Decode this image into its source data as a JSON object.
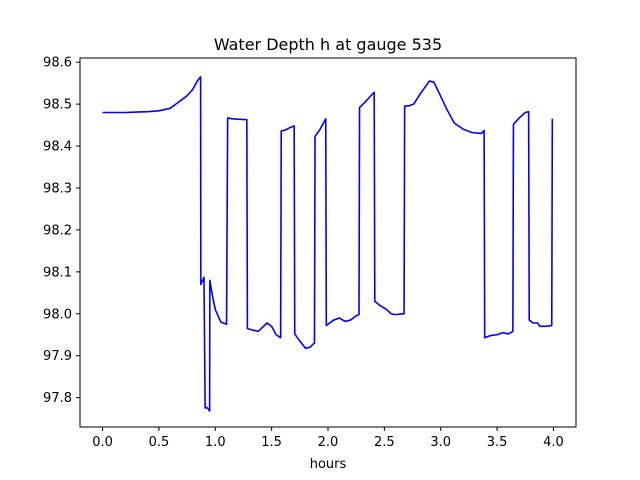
{
  "chart_data": {
    "type": "line",
    "title": "Water Depth h at gauge 535",
    "xlabel": "hours",
    "ylabel": "",
    "xlim": [
      -0.2,
      4.2
    ],
    "ylim": [
      97.73,
      98.61
    ],
    "xticks": [
      0.0,
      0.5,
      1.0,
      1.5,
      2.0,
      2.5,
      3.0,
      3.5,
      4.0
    ],
    "xtick_labels": [
      "0.0",
      "0.5",
      "1.0",
      "1.5",
      "2.0",
      "2.5",
      "3.0",
      "3.5",
      "4.0"
    ],
    "yticks": [
      97.8,
      97.9,
      98.0,
      98.1,
      98.2,
      98.3,
      98.4,
      98.5,
      98.6
    ],
    "ytick_labels": [
      "97.8",
      "97.9",
      "98.0",
      "98.1",
      "98.2",
      "98.3",
      "98.4",
      "98.5",
      "98.6"
    ],
    "grid": false,
    "series": [
      {
        "color": "#0000ff",
        "x": [
          0.0,
          0.1,
          0.2,
          0.3,
          0.4,
          0.5,
          0.6,
          0.65,
          0.7,
          0.75,
          0.8,
          0.84,
          0.87,
          0.872,
          0.9,
          0.91,
          0.92,
          0.93,
          0.94,
          0.95,
          0.952,
          0.97,
          1.0,
          1.05,
          1.1,
          1.11,
          1.15,
          1.2,
          1.28,
          1.285,
          1.32,
          1.38,
          1.42,
          1.46,
          1.5,
          1.54,
          1.58,
          1.585,
          1.62,
          1.67,
          1.7,
          1.705,
          1.75,
          1.8,
          1.84,
          1.87,
          1.88,
          1.885,
          1.93,
          1.98,
          1.985,
          2.05,
          2.1,
          2.15,
          2.2,
          2.25,
          2.275,
          2.28,
          2.33,
          2.38,
          2.41,
          2.415,
          2.46,
          2.52,
          2.56,
          2.6,
          2.66,
          2.675,
          2.68,
          2.72,
          2.76,
          2.82,
          2.9,
          2.94,
          2.98,
          3.05,
          3.12,
          3.2,
          3.28,
          3.36,
          3.385,
          3.39,
          3.44,
          3.5,
          3.55,
          3.6,
          3.64,
          3.645,
          3.7,
          3.75,
          3.78,
          3.785,
          3.82,
          3.86,
          3.88,
          3.92,
          3.985,
          3.99
        ],
        "y": [
          98.48,
          98.48,
          98.48,
          98.481,
          98.482,
          98.484,
          98.49,
          98.5,
          98.51,
          98.52,
          98.535,
          98.555,
          98.565,
          98.07,
          98.087,
          97.775,
          97.777,
          97.775,
          97.772,
          97.768,
          98.08,
          98.05,
          98.01,
          97.98,
          97.975,
          98.467,
          98.465,
          98.464,
          98.463,
          97.965,
          97.962,
          97.958,
          97.968,
          97.978,
          97.97,
          97.95,
          97.943,
          98.436,
          98.438,
          98.445,
          98.448,
          97.952,
          97.935,
          97.918,
          97.92,
          97.928,
          97.93,
          98.423,
          98.44,
          98.465,
          97.972,
          97.985,
          97.99,
          97.982,
          97.985,
          97.995,
          97.998,
          98.492,
          98.505,
          98.52,
          98.528,
          98.03,
          98.02,
          98.01,
          98.0,
          97.998,
          98.0,
          98.0,
          98.495,
          98.496,
          98.5,
          98.525,
          98.555,
          98.552,
          98.53,
          98.49,
          98.455,
          98.44,
          98.432,
          98.43,
          98.437,
          97.943,
          97.948,
          97.95,
          97.955,
          97.952,
          97.958,
          98.452,
          98.468,
          98.48,
          98.482,
          97.985,
          97.978,
          97.978,
          97.97,
          97.97,
          97.972,
          98.465
        ]
      }
    ]
  }
}
